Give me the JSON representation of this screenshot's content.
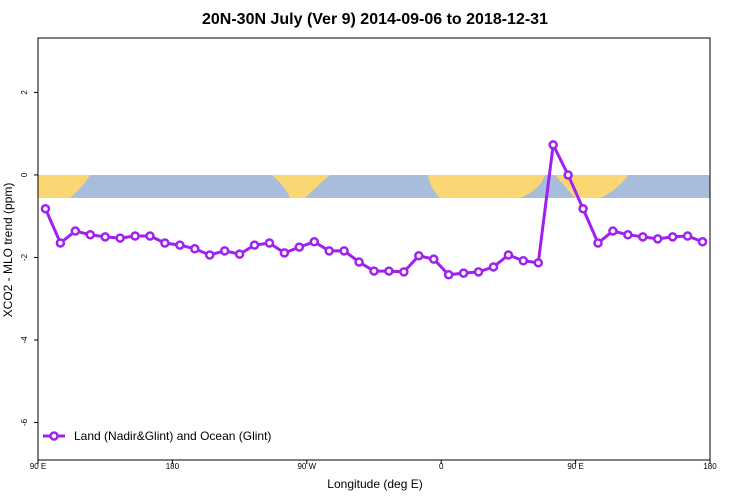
{
  "chart_data": {
    "type": "line",
    "title": "20N-30N July (Ver 9)   2014-09-06 to 2018-12-31",
    "x_label": "Longitude (deg E)",
    "y_label": "XCO2 - MLO trend (ppm)",
    "x": [
      95,
      105,
      115,
      125,
      135,
      145,
      155,
      165,
      175,
      185,
      195,
      205,
      215,
      225,
      235,
      245,
      255,
      265,
      275,
      285,
      295,
      305,
      315,
      325,
      335,
      345,
      355,
      365,
      375,
      385,
      395,
      405,
      415,
      425,
      435,
      445,
      455,
      465,
      475,
      485,
      495,
      505,
      515,
      525,
      535
    ],
    "series": [
      {
        "name": "Land (Nadir&Glint) and Ocean (Glint)",
        "color": "#a020f0",
        "values": [
          -0.82,
          -1.65,
          -1.36,
          -1.45,
          -1.5,
          -1.53,
          -1.48,
          -1.48,
          -1.65,
          -1.7,
          -1.79,
          -1.94,
          -1.84,
          -1.92,
          -1.7,
          -1.65,
          -1.89,
          -1.75,
          -1.62,
          -1.84,
          -1.84,
          -2.11,
          -2.33,
          -2.33,
          -2.35,
          -1.96,
          -2.04,
          -2.42,
          -2.38,
          -2.35,
          -2.23,
          -1.94,
          -2.08,
          -2.13,
          0.73,
          0.0,
          -0.82,
          -1.65,
          -1.36,
          -1.45,
          -1.5,
          -1.55,
          -1.5,
          -1.48,
          -1.62
        ]
      }
    ],
    "xlim": [
      90,
      540
    ],
    "xticks": [
      {
        "value": 90,
        "label": "90 E"
      },
      180,
      {
        "value": 270,
        "label": "90 W"
      },
      {
        "value": 360,
        "label": "0"
      },
      {
        "value": 450,
        "label": "90 E"
      },
      {
        "value": 540,
        "label": "180"
      }
    ],
    "ylim": [
      -6.91,
      3.32
    ],
    "yticks": [
      2,
      0,
      -2,
      -4,
      -6
    ],
    "legend": "bottom-left"
  }
}
